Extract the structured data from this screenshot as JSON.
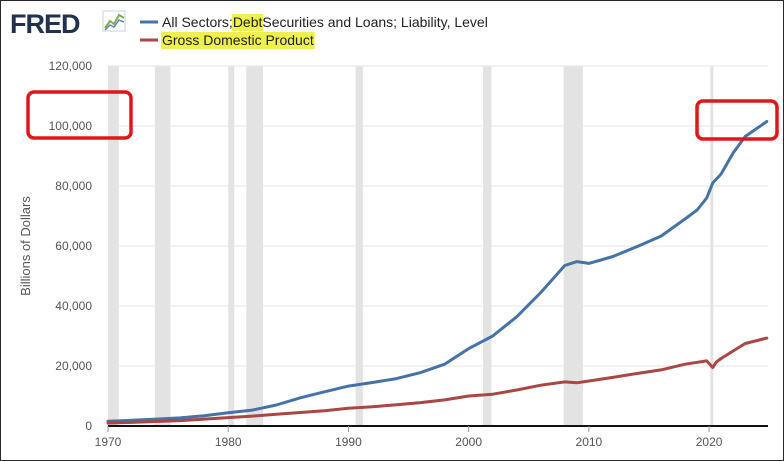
{
  "logo": {
    "text": "FRED"
  },
  "highlight_color": "#eef050",
  "annotation_color": "#e0161b",
  "chart_data": {
    "type": "line",
    "ylabel": "Billions of Dollars",
    "xlim": [
      1970,
      2024.9
    ],
    "ylim": [
      0,
      120000
    ],
    "x_ticks": [
      1970,
      1980,
      1990,
      2000,
      2010,
      2020
    ],
    "y_ticks": [
      0,
      20000,
      40000,
      60000,
      80000,
      100000,
      120000
    ],
    "y_tick_labels": [
      "0",
      "20,000",
      "40,000",
      "60,000",
      "80,000",
      "100,000",
      "120,000"
    ],
    "grid": true,
    "legend_position": "top-left",
    "recessions": [
      [
        1970.0,
        1970.9
      ],
      [
        1973.9,
        1975.2
      ],
      [
        1980.0,
        1980.5
      ],
      [
        1981.5,
        1982.9
      ],
      [
        1990.6,
        1991.2
      ],
      [
        2001.2,
        2001.9
      ],
      [
        2007.9,
        2009.5
      ],
      [
        2020.1,
        2020.35
      ]
    ],
    "series": [
      {
        "name_parts": [
          "All Sectors; ",
          "Debt",
          " Securities and Loans; Liability, Level"
        ],
        "highlight_indexes": [
          1
        ],
        "color": "#4572a7",
        "points": [
          [
            1970,
            1600
          ],
          [
            1972,
            1900
          ],
          [
            1974,
            2300
          ],
          [
            1976,
            2700
          ],
          [
            1978,
            3400
          ],
          [
            1980,
            4400
          ],
          [
            1982,
            5300
          ],
          [
            1984,
            7000
          ],
          [
            1986,
            9400
          ],
          [
            1988,
            11400
          ],
          [
            1990,
            13300
          ],
          [
            1992,
            14500
          ],
          [
            1994,
            15800
          ],
          [
            1996,
            17800
          ],
          [
            1998,
            20600
          ],
          [
            2000,
            25800
          ],
          [
            2002,
            30000
          ],
          [
            2004,
            36400
          ],
          [
            2006,
            44500
          ],
          [
            2008,
            53500
          ],
          [
            2009,
            54800
          ],
          [
            2010,
            54200
          ],
          [
            2012,
            56500
          ],
          [
            2014,
            59800
          ],
          [
            2016,
            63300
          ],
          [
            2018,
            69000
          ],
          [
            2019,
            72000
          ],
          [
            2019.8,
            76000
          ],
          [
            2020.3,
            81000
          ],
          [
            2021,
            84000
          ],
          [
            2022,
            91000
          ],
          [
            2023,
            96500
          ],
          [
            2024.8,
            101500
          ]
        ]
      },
      {
        "name_parts": [
          "Gross Domestic Product"
        ],
        "highlight_indexes": [
          0
        ],
        "color": "#aa4643",
        "points": [
          [
            1970,
            1000
          ],
          [
            1972,
            1200
          ],
          [
            1974,
            1500
          ],
          [
            1976,
            1800
          ],
          [
            1978,
            2300
          ],
          [
            1980,
            2800
          ],
          [
            1982,
            3300
          ],
          [
            1984,
            3900
          ],
          [
            1986,
            4500
          ],
          [
            1988,
            5100
          ],
          [
            1990,
            5900
          ],
          [
            1992,
            6400
          ],
          [
            1994,
            7100
          ],
          [
            1996,
            7800
          ],
          [
            1998,
            8700
          ],
          [
            2000,
            10000
          ],
          [
            2002,
            10600
          ],
          [
            2004,
            12000
          ],
          [
            2006,
            13600
          ],
          [
            2008,
            14700
          ],
          [
            2009,
            14400
          ],
          [
            2010,
            15000
          ],
          [
            2012,
            16200
          ],
          [
            2014,
            17500
          ],
          [
            2016,
            18700
          ],
          [
            2018,
            20600
          ],
          [
            2019.8,
            21700
          ],
          [
            2020.3,
            19500
          ],
          [
            2020.6,
            21300
          ],
          [
            2021,
            22500
          ],
          [
            2022,
            25000
          ],
          [
            2023,
            27500
          ],
          [
            2024.8,
            29300
          ]
        ]
      }
    ]
  }
}
